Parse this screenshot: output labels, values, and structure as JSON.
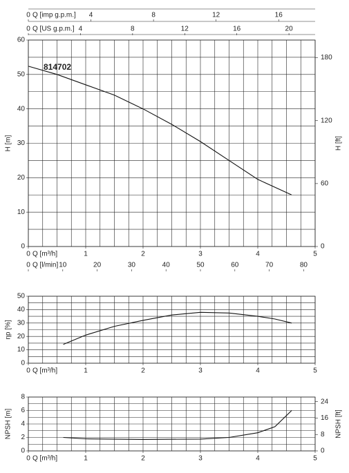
{
  "chart_data": [
    {
      "type": "line",
      "x": [
        0,
        0.5,
        1,
        1.5,
        2,
        2.5,
        3,
        3.5,
        4,
        4.59
      ],
      "series": [
        {
          "name": "814702",
          "color": "#111111",
          "values": [
            52.4,
            50,
            47,
            44,
            40,
            35.5,
            30.5,
            25,
            19.5,
            15
          ]
        }
      ],
      "xlabel": "Q [m³/h]",
      "xlim": [
        0,
        5
      ],
      "xticks": [
        0,
        1,
        2,
        3,
        4,
        5
      ],
      "minor_xticks": [
        0.25,
        0.5,
        0.75,
        1.25,
        1.5,
        1.75,
        2.25,
        2.5,
        2.75,
        3.25,
        3.5,
        3.75,
        4.25,
        4.5,
        4.75
      ],
      "ylabel": "H [m]",
      "ylim": [
        0,
        60
      ],
      "yticks": [
        0,
        10,
        20,
        30,
        40,
        50,
        60
      ],
      "minor_yticks": [
        5,
        15,
        25,
        35,
        45,
        55
      ],
      "y2label": "H [ft]",
      "y2lim": [
        0,
        196.85
      ],
      "y2ticks": [
        0,
        60,
        120,
        180
      ],
      "extra_x_axes": [
        {
          "label": "Q [imp g.p.m.]",
          "position": "top",
          "xlim": [
            0,
            18.33
          ],
          "xticks": [
            0,
            4,
            8,
            12,
            16
          ]
        },
        {
          "label": "Q [US g.p.m.]",
          "position": "top",
          "xlim": [
            0,
            22.01
          ],
          "xticks": [
            0,
            4,
            8,
            12,
            16,
            20
          ]
        },
        {
          "label": "Q [l/min]",
          "position": "bottom",
          "xlim": [
            0,
            83.33
          ],
          "xticks": [
            0,
            10,
            20,
            30,
            40,
            50,
            60,
            70,
            80
          ]
        }
      ]
    },
    {
      "type": "line",
      "x": [
        0.61,
        1,
        1.5,
        2,
        2.5,
        3,
        3.5,
        4,
        4.3,
        4.59
      ],
      "series": [
        {
          "color": "#111111",
          "values": [
            14,
            21,
            27.5,
            32,
            36,
            38,
            37.5,
            35,
            33,
            30
          ]
        }
      ],
      "xlabel": "Q [m³/h]",
      "xlim": [
        0,
        5
      ],
      "xticks": [
        0,
        1,
        2,
        3,
        4,
        5
      ],
      "minor_xticks": [
        0.25,
        0.5,
        0.75,
        1.25,
        1.5,
        1.75,
        2.25,
        2.5,
        2.75,
        3.25,
        3.5,
        3.75,
        4.25,
        4.5,
        4.75
      ],
      "ylabel": "ηp [%]",
      "ylim": [
        0,
        50
      ],
      "yticks": [
        0,
        10,
        20,
        30,
        40,
        50
      ],
      "minor_yticks": [
        5,
        15,
        25,
        35,
        45
      ]
    },
    {
      "type": "line",
      "x": [
        0.61,
        1,
        2,
        3,
        3.5,
        4,
        4.3,
        4.59
      ],
      "series": [
        {
          "color": "#111111",
          "values": [
            2.0,
            1.8,
            1.7,
            1.75,
            2.0,
            2.7,
            3.6,
            6.0
          ]
        }
      ],
      "xlabel": "Q [m³/h]",
      "xlim": [
        0,
        5
      ],
      "xticks": [
        0,
        1,
        2,
        3,
        4,
        5
      ],
      "minor_xticks": [
        0.25,
        0.5,
        0.75,
        1.25,
        1.5,
        1.75,
        2.25,
        2.5,
        2.75,
        3.25,
        3.5,
        3.75,
        4.25,
        4.5,
        4.75
      ],
      "ylabel": "NPSH [m]",
      "ylim": [
        0,
        8
      ],
      "yticks": [
        0,
        2,
        4,
        6,
        8
      ],
      "minor_yticks": [
        1,
        3,
        5,
        7
      ],
      "y2label": "NPSH [ft]",
      "y2lim": [
        0,
        26.25
      ],
      "y2ticks": [
        0,
        8,
        16,
        24
      ]
    }
  ]
}
